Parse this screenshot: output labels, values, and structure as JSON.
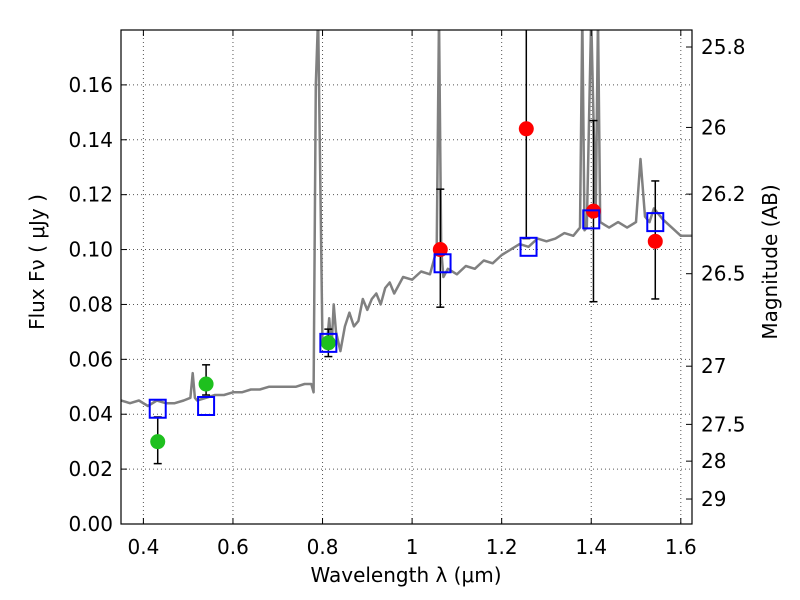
{
  "chart_data": {
    "type": "scatter",
    "title": "",
    "xlabel": "Wavelength  λ (μm)",
    "ylabel": "Flux  Fν  ( μJy )",
    "y2label": "Magnitude (AB)",
    "xlim": [
      0.35,
      1.625
    ],
    "ylim": [
      0.0,
      0.18
    ],
    "grid": true,
    "x_ticks": [
      0.4,
      0.6,
      0.8,
      1.0,
      1.2,
      1.4,
      1.6
    ],
    "x_tick_labels": [
      "0.4",
      "0.6",
      "0.8",
      "1",
      "1.2",
      "1.4",
      "1.6"
    ],
    "y_ticks": [
      0.0,
      0.02,
      0.04,
      0.06,
      0.08,
      0.1,
      0.12,
      0.14,
      0.16
    ],
    "y_tick_labels": [
      "0.00",
      "0.02",
      "0.04",
      "0.06",
      "0.08",
      "0.10",
      "0.12",
      "0.14",
      "0.16"
    ],
    "y2_ticks": [
      {
        "label": "25.8",
        "flux": 0.1738
      },
      {
        "label": "26",
        "flux": 0.1445
      },
      {
        "label": "26.2",
        "flux": 0.1202
      },
      {
        "label": "26.5",
        "flux": 0.0912
      },
      {
        "label": "27",
        "flux": 0.0575
      },
      {
        "label": "27.5",
        "flux": 0.0363
      },
      {
        "label": "28",
        "flux": 0.0229
      },
      {
        "label": "29",
        "flux": 0.0091
      }
    ],
    "series": [
      {
        "kind": "line",
        "color": "#808080",
        "x": [
          0.35,
          0.37,
          0.39,
          0.41,
          0.43,
          0.45,
          0.47,
          0.49,
          0.505,
          0.51,
          0.515,
          0.52,
          0.54,
          0.56,
          0.58,
          0.6,
          0.62,
          0.64,
          0.66,
          0.68,
          0.7,
          0.72,
          0.74,
          0.76,
          0.775,
          0.78,
          0.785,
          0.79,
          0.8,
          0.81,
          0.815,
          0.82,
          0.825,
          0.83,
          0.84,
          0.85,
          0.86,
          0.87,
          0.88,
          0.89,
          0.9,
          0.91,
          0.92,
          0.93,
          0.94,
          0.95,
          0.96,
          0.98,
          1.0,
          1.02,
          1.04,
          1.055,
          1.06,
          1.065,
          1.07,
          1.08,
          1.1,
          1.12,
          1.14,
          1.16,
          1.18,
          1.2,
          1.22,
          1.24,
          1.26,
          1.28,
          1.3,
          1.32,
          1.34,
          1.36,
          1.375,
          1.38,
          1.385,
          1.39,
          1.4,
          1.41,
          1.415,
          1.42,
          1.43,
          1.44,
          1.46,
          1.48,
          1.5,
          1.51,
          1.52,
          1.53,
          1.54,
          1.56,
          1.58,
          1.6,
          1.625
        ],
        "y": [
          0.045,
          0.044,
          0.045,
          0.043,
          0.045,
          0.044,
          0.044,
          0.045,
          0.046,
          0.055,
          0.046,
          0.045,
          0.046,
          0.047,
          0.047,
          0.048,
          0.048,
          0.049,
          0.049,
          0.05,
          0.05,
          0.05,
          0.05,
          0.051,
          0.051,
          0.048,
          0.16,
          0.185,
          0.065,
          0.066,
          0.075,
          0.064,
          0.08,
          0.07,
          0.063,
          0.072,
          0.077,
          0.072,
          0.074,
          0.082,
          0.078,
          0.082,
          0.084,
          0.08,
          0.086,
          0.088,
          0.084,
          0.09,
          0.089,
          0.092,
          0.091,
          0.1,
          0.185,
          0.1,
          0.09,
          0.093,
          0.091,
          0.094,
          0.093,
          0.096,
          0.095,
          0.098,
          0.1,
          0.102,
          0.101,
          0.104,
          0.103,
          0.104,
          0.106,
          0.105,
          0.108,
          0.185,
          0.107,
          0.108,
          0.185,
          0.112,
          0.185,
          0.11,
          0.109,
          0.108,
          0.11,
          0.108,
          0.11,
          0.133,
          0.112,
          0.11,
          0.115,
          0.111,
          0.108,
          0.105,
          0.105
        ]
      },
      {
        "kind": "points",
        "marker": "circle",
        "color": "#1ec01e",
        "x": [
          0.432,
          0.54,
          0.813
        ],
        "y": [
          0.03,
          0.051,
          0.066
        ],
        "yerr": [
          [
            0.022,
            0.039
          ],
          [
            0.047,
            0.058
          ],
          [
            0.061,
            0.071
          ]
        ]
      },
      {
        "kind": "points",
        "marker": "circle",
        "color": "#ff0000",
        "x": [
          1.063,
          1.255,
          1.405,
          1.543
        ],
        "y": [
          0.1,
          0.144,
          0.114,
          0.103
        ],
        "yerr": [
          [
            0.079,
            0.122
          ],
          [
            0.104,
            0.185
          ],
          [
            0.081,
            0.147
          ],
          [
            0.082,
            0.125
          ]
        ]
      },
      {
        "kind": "points",
        "marker": "square-open",
        "color": "#0000ff",
        "x": [
          0.432,
          0.54,
          0.813,
          1.068,
          1.26,
          1.4,
          1.543
        ],
        "y": [
          0.042,
          0.043,
          0.066,
          0.095,
          0.101,
          0.111,
          0.11
        ]
      }
    ]
  }
}
